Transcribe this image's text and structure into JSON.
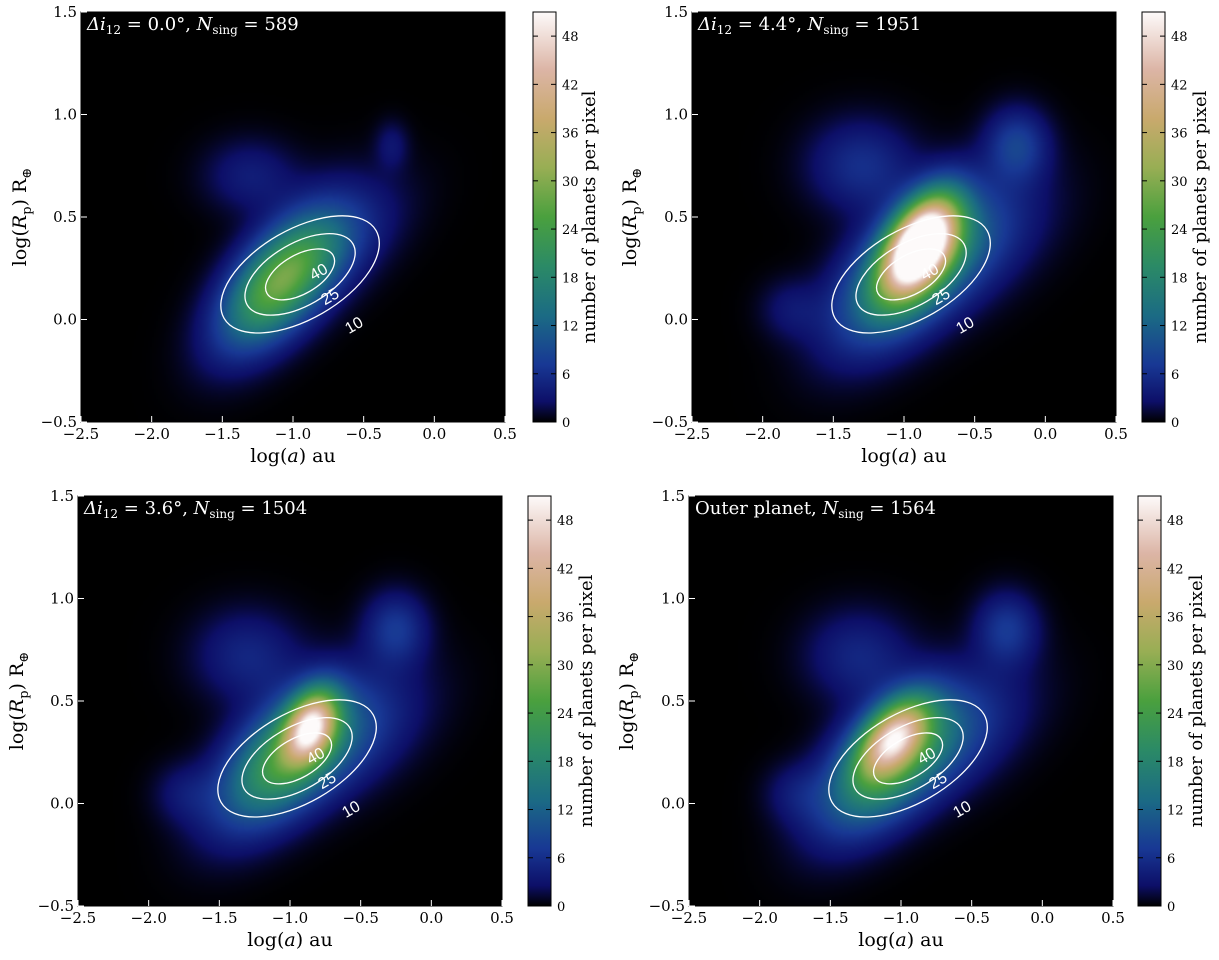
{
  "chart_data": [
    {
      "type": "heatmap",
      "title_parts": [
        "Δi",
        "12",
        " = 0.0°, ",
        "N",
        "sing",
        " = 589"
      ],
      "xlabel": [
        "log(",
        "a",
        ") au"
      ],
      "ylabel": [
        "log(",
        "R",
        "p",
        ") R",
        "⊕"
      ],
      "xlim": [
        -2.5,
        0.5
      ],
      "ylim": [
        -0.5,
        1.5
      ],
      "xticks": [
        "−2.5",
        "−2.0",
        "−1.5",
        "−1.0",
        "−0.5",
        "0.0",
        "0.5"
      ],
      "yticks": [
        "−0.5",
        "0.0",
        "0.5",
        "1.0",
        "1.5"
      ],
      "colorbar": {
        "label": "number of planets per pixel",
        "range": [
          0,
          51
        ],
        "ticks": [
          "0",
          "6",
          "12",
          "18",
          "24",
          "30",
          "36",
          "42",
          "48"
        ]
      },
      "contour_levels": [
        "10",
        "25",
        "40"
      ],
      "peak": 22,
      "blobs": [
        {
          "x": -1.05,
          "y": 0.22,
          "sx": 0.32,
          "sy": 0.16,
          "rot": 35,
          "amp": 20
        },
        {
          "x": -1.2,
          "y": 0.12,
          "sx": 0.28,
          "sy": 0.14,
          "rot": 30,
          "amp": 8
        },
        {
          "x": -0.7,
          "y": 0.35,
          "sx": 0.35,
          "sy": 0.15,
          "rot": 25,
          "amp": 5
        },
        {
          "x": -1.3,
          "y": 0.7,
          "sx": 0.22,
          "sy": 0.12,
          "rot": 0,
          "amp": 4
        },
        {
          "x": -0.3,
          "y": 0.85,
          "sx": 0.08,
          "sy": 0.08,
          "rot": 0,
          "amp": 3
        }
      ]
    },
    {
      "type": "heatmap",
      "title_parts": [
        "Δi",
        "12",
        " = 4.4°, ",
        "N",
        "sing",
        " = 1951"
      ],
      "xlabel": [
        "log(",
        "a",
        ") au"
      ],
      "ylabel": [
        "log(",
        "R",
        "p",
        ") R",
        "⊕"
      ],
      "xlim": [
        -2.5,
        0.5
      ],
      "ylim": [
        -0.5,
        1.5
      ],
      "xticks": [
        "−2.5",
        "−2.0",
        "−1.5",
        "−1.0",
        "−0.5",
        "0.0",
        "0.5"
      ],
      "yticks": [
        "−0.5",
        "0.0",
        "0.5",
        "1.0",
        "1.5"
      ],
      "colorbar": {
        "label": "number of planets per pixel",
        "range": [
          0,
          51
        ],
        "ticks": [
          "0",
          "6",
          "12",
          "18",
          "24",
          "30",
          "36",
          "42",
          "48"
        ]
      },
      "contour_levels": [
        "10",
        "25",
        "40"
      ],
      "peak": 75,
      "blobs": [
        {
          "x": -0.88,
          "y": 0.37,
          "sx": 0.2,
          "sy": 0.12,
          "rot": 40,
          "amp": 55
        },
        {
          "x": -1.0,
          "y": 0.22,
          "sx": 0.36,
          "sy": 0.18,
          "rot": 30,
          "amp": 18
        },
        {
          "x": -0.6,
          "y": 0.35,
          "sx": 0.4,
          "sy": 0.18,
          "rot": 20,
          "amp": 8
        },
        {
          "x": -1.3,
          "y": 0.75,
          "sx": 0.25,
          "sy": 0.15,
          "rot": 0,
          "amp": 6
        },
        {
          "x": -0.2,
          "y": 0.85,
          "sx": 0.15,
          "sy": 0.12,
          "rot": 0,
          "amp": 8
        },
        {
          "x": -1.8,
          "y": 0.05,
          "sx": 0.15,
          "sy": 0.1,
          "rot": 0,
          "amp": 3
        }
      ]
    },
    {
      "type": "heatmap",
      "title_parts": [
        "Δi",
        "12",
        " = 3.6°, ",
        "N",
        "sing",
        " = 1504"
      ],
      "xlabel": [
        "log(",
        "a",
        ") au"
      ],
      "ylabel": [
        "log(",
        "R",
        "p",
        ") R",
        "⊕"
      ],
      "xlim": [
        -2.5,
        0.5
      ],
      "ylim": [
        -0.5,
        1.5
      ],
      "xticks": [
        "−2.5",
        "−2.0",
        "−1.5",
        "−1.0",
        "−0.5",
        "0.0",
        "0.5"
      ],
      "yticks": [
        "−0.5",
        "0.0",
        "0.5",
        "1.0",
        "1.5"
      ],
      "colorbar": {
        "label": "number of planets per pixel",
        "range": [
          0,
          51
        ],
        "ticks": [
          "0",
          "6",
          "12",
          "18",
          "24",
          "30",
          "36",
          "42",
          "48"
        ]
      },
      "contour_levels": [
        "10",
        "25",
        "40"
      ],
      "peak": 55,
      "blobs": [
        {
          "x": -0.85,
          "y": 0.38,
          "sx": 0.14,
          "sy": 0.1,
          "rot": 40,
          "amp": 35
        },
        {
          "x": -1.05,
          "y": 0.22,
          "sx": 0.34,
          "sy": 0.17,
          "rot": 30,
          "amp": 22
        },
        {
          "x": -0.6,
          "y": 0.32,
          "sx": 0.38,
          "sy": 0.17,
          "rot": 20,
          "amp": 7
        },
        {
          "x": -1.3,
          "y": 0.72,
          "sx": 0.25,
          "sy": 0.15,
          "rot": 0,
          "amp": 5
        },
        {
          "x": -0.25,
          "y": 0.85,
          "sx": 0.15,
          "sy": 0.12,
          "rot": 0,
          "amp": 7
        },
        {
          "x": -1.75,
          "y": 0.05,
          "sx": 0.15,
          "sy": 0.1,
          "rot": 0,
          "amp": 3
        }
      ]
    },
    {
      "type": "heatmap",
      "title_parts": [
        "Outer planet, ",
        "",
        "",
        "N",
        "sing",
        " = 1564"
      ],
      "xlabel": [
        "log(",
        "a",
        ") au"
      ],
      "ylabel": [
        "log(",
        "R",
        "p",
        ") R",
        "⊕"
      ],
      "xlim": [
        -2.5,
        0.5
      ],
      "ylim": [
        -0.5,
        1.5
      ],
      "xticks": [
        "−2.5",
        "−2.0",
        "−1.5",
        "−1.0",
        "−0.5",
        "0.0",
        "0.5"
      ],
      "yticks": [
        "−0.5",
        "0.0",
        "0.5",
        "1.0",
        "1.5"
      ],
      "colorbar": {
        "label": "number of planets per pixel",
        "range": [
          0,
          51
        ],
        "ticks": [
          "0",
          "6",
          "12",
          "18",
          "24",
          "30",
          "36",
          "42",
          "48"
        ]
      },
      "contour_levels": [
        "10",
        "25",
        "40"
      ],
      "peak": 55,
      "blobs": [
        {
          "x": -1.05,
          "y": 0.33,
          "sx": 0.18,
          "sy": 0.1,
          "rot": 30,
          "amp": 30
        },
        {
          "x": -1.1,
          "y": 0.2,
          "sx": 0.34,
          "sy": 0.17,
          "rot": 30,
          "amp": 22
        },
        {
          "x": -0.65,
          "y": 0.32,
          "sx": 0.38,
          "sy": 0.17,
          "rot": 20,
          "amp": 7
        },
        {
          "x": -1.3,
          "y": 0.72,
          "sx": 0.25,
          "sy": 0.15,
          "rot": 0,
          "amp": 5
        },
        {
          "x": -0.25,
          "y": 0.85,
          "sx": 0.15,
          "sy": 0.12,
          "rot": 0,
          "amp": 7
        },
        {
          "x": -1.75,
          "y": 0.05,
          "sx": 0.15,
          "sy": 0.1,
          "rot": 0,
          "amp": 3
        }
      ]
    }
  ]
}
